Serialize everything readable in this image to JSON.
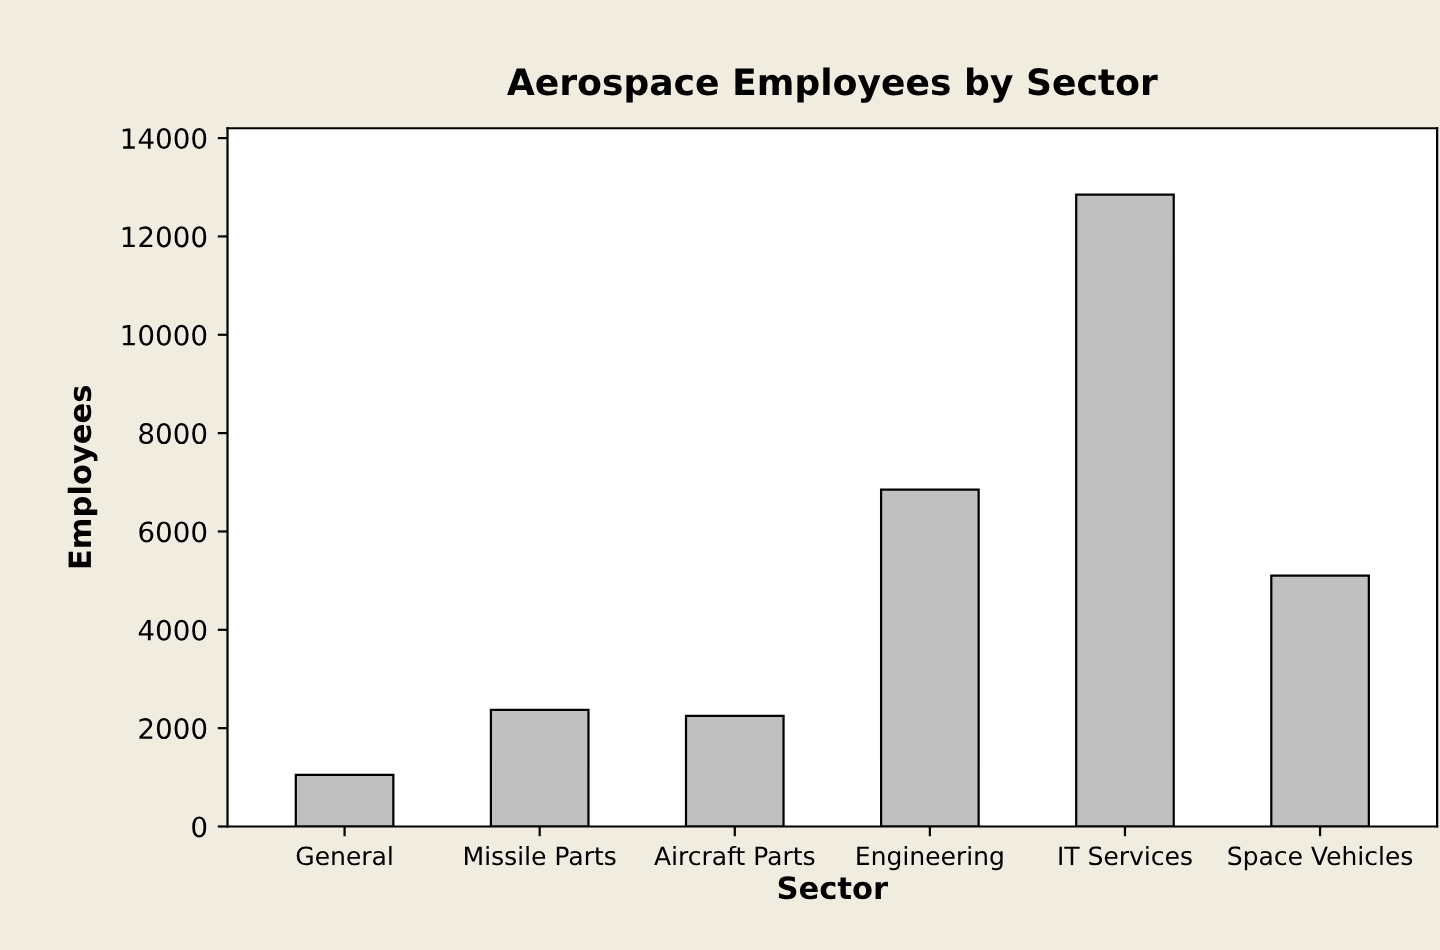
{
  "chart_data": {
    "type": "bar",
    "title": "Aerospace Employees by Sector",
    "xlabel": "Sector",
    "ylabel": "Employees",
    "categories": [
      "General",
      "Missile Parts",
      "Aircraft Parts",
      "Engineering",
      "IT Services",
      "Space Vehicles"
    ],
    "values": [
      1050,
      2370,
      2250,
      6850,
      12850,
      5100
    ],
    "color": "#c0c0c0",
    "ylim": [
      0,
      14200
    ],
    "yticks": [
      0,
      2000,
      4000,
      6000,
      8000,
      10000,
      12000,
      14000
    ],
    "grid": false
  }
}
